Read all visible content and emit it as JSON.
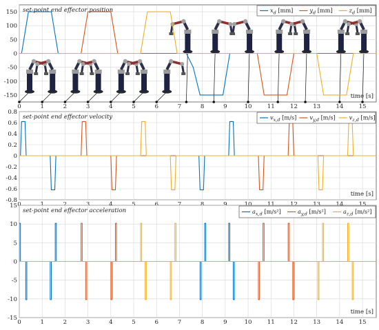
{
  "chart_data": [
    {
      "type": "line",
      "title": "set-point end effector position",
      "xlabel": "time [s]",
      "ylabel": "",
      "xlim": [
        0,
        15.6
      ],
      "ylim": [
        -175,
        175
      ],
      "xticks": [
        0,
        1,
        2,
        3,
        4,
        5,
        6,
        7,
        8,
        9,
        10,
        11,
        12,
        13,
        14,
        15
      ],
      "yticks": [
        -150,
        -100,
        -50,
        0,
        50,
        100,
        150
      ],
      "grid": true,
      "legend_position": "top-right",
      "legend": [
        "x_d [mm]",
        "y_d [mm]",
        "z_d [mm]"
      ],
      "robot_pose_times": [
        0,
        1,
        2,
        3,
        4,
        5,
        6,
        7.3,
        8.5,
        10,
        11.3,
        12.5,
        14,
        15
      ],
      "series": [
        {
          "name": "x_d [mm]",
          "color": "#0072BD",
          "x": [
            0,
            0.1,
            0.4,
            1.4,
            1.7,
            7.3,
            7.6,
            7.9,
            8.9,
            9.2,
            15.6
          ],
          "y": [
            0,
            0,
            150,
            150,
            0,
            0,
            -50,
            -150,
            -150,
            0,
            0
          ]
        },
        {
          "name": "y_d [mm]",
          "color": "#D95319",
          "x": [
            0,
            2.7,
            3.0,
            4.0,
            4.3,
            10.4,
            10.7,
            11.7,
            12.0,
            15.6
          ],
          "y": [
            0,
            0,
            150,
            150,
            0,
            0,
            -150,
            -150,
            0,
            0
          ]
        },
        {
          "name": "z_d [mm]",
          "color": "#EDB120",
          "x": [
            0,
            5.3,
            5.6,
            6.6,
            6.9,
            13.0,
            13.3,
            14.3,
            14.6,
            15.6
          ],
          "y": [
            0,
            0,
            150,
            150,
            0,
            0,
            -150,
            -150,
            0,
            0
          ]
        }
      ]
    },
    {
      "type": "line",
      "title": "set-point end effector velocity",
      "xlabel": "time [s]",
      "ylabel": "",
      "xlim": [
        0,
        15.6
      ],
      "ylim": [
        -0.8,
        0.8
      ],
      "xticks": [
        0,
        1,
        2,
        3,
        4,
        5,
        6,
        7,
        8,
        9,
        10,
        11,
        12,
        13,
        14,
        15
      ],
      "yticks": [
        -0.8,
        -0.6,
        -0.4,
        -0.2,
        0,
        0.2,
        0.4,
        0.6,
        0.8
      ],
      "grid": true,
      "legend_position": "top-right",
      "legend": [
        "v_x,d [m/s]",
        "v_y,d [m/s]",
        "v_z,d [m/s]"
      ],
      "series": [
        {
          "name": "v_x,d [m/s]",
          "color": "#0072BD",
          "x": [
            0,
            0.05,
            0.1,
            0.25,
            0.3,
            1.35,
            1.4,
            1.55,
            1.6,
            7.85,
            7.9,
            8.05,
            8.1,
            9.15,
            9.2,
            9.35,
            9.4,
            15.6
          ],
          "y": [
            0,
            0,
            0.62,
            0.62,
            0,
            0,
            -0.62,
            -0.62,
            0,
            0,
            -0.62,
            -0.62,
            0,
            0,
            0.62,
            0.62,
            0,
            0
          ]
        },
        {
          "name": "v_y,d [m/s]",
          "color": "#D95319",
          "x": [
            0,
            2.7,
            2.75,
            2.9,
            2.95,
            4.0,
            4.05,
            4.2,
            4.25,
            10.45,
            10.5,
            10.65,
            10.7,
            11.75,
            11.8,
            11.95,
            12.0,
            15.6
          ],
          "y": [
            0,
            0,
            0.62,
            0.62,
            0,
            0,
            -0.62,
            -0.62,
            0,
            0,
            -0.62,
            -0.62,
            0,
            0,
            0.62,
            0.62,
            0,
            0
          ]
        },
        {
          "name": "v_z,d [m/s]",
          "color": "#EDB120",
          "x": [
            0,
            5.3,
            5.35,
            5.5,
            5.55,
            6.6,
            6.65,
            6.8,
            6.85,
            13.05,
            13.1,
            13.25,
            13.3,
            14.35,
            14.4,
            14.55,
            14.6,
            15.6
          ],
          "y": [
            0,
            0,
            0.62,
            0.62,
            0,
            0,
            -0.62,
            -0.62,
            0,
            0,
            -0.62,
            -0.62,
            0,
            0,
            0.62,
            0.62,
            0,
            0
          ]
        }
      ]
    },
    {
      "type": "line",
      "title": "set-point end effector acceleration",
      "xlabel": "time [s]",
      "ylabel": "",
      "xlim": [
        0,
        15.6
      ],
      "ylim": [
        -15,
        15
      ],
      "xticks": [
        0,
        1,
        2,
        3,
        4,
        5,
        6,
        7,
        8,
        9,
        10,
        11,
        12,
        13,
        14,
        15
      ],
      "yticks": [
        -15,
        -10,
        -5,
        0,
        5,
        10,
        15
      ],
      "grid": true,
      "legend_position": "top-right",
      "legend": [
        "a_x,d [m/s²]",
        "a_y,d [m/s²]",
        "a_z,d [m/s²]"
      ],
      "pulse_width": 0.05,
      "series": [
        {
          "name": "a_x,d [m/s²]",
          "color": "#0072BD",
          "pulses": [
            [
              0.0,
              10.2
            ],
            [
              0.28,
              -10.2
            ],
            [
              1.35,
              -10.2
            ],
            [
              1.57,
              10.2
            ],
            [
              7.9,
              -10.2
            ],
            [
              8.1,
              10.2
            ],
            [
              9.15,
              10.2
            ],
            [
              9.35,
              -10.2
            ]
          ]
        },
        {
          "name": "a_y,d [m/s²]",
          "color": "#D95319",
          "pulses": [
            [
              2.7,
              10.2
            ],
            [
              2.9,
              -10.2
            ],
            [
              4.0,
              -10.2
            ],
            [
              4.2,
              10.2
            ],
            [
              10.45,
              -10.2
            ],
            [
              10.65,
              10.2
            ],
            [
              11.75,
              10.2
            ],
            [
              11.95,
              -10.2
            ]
          ]
        },
        {
          "name": "a_z,d [m/s²]",
          "color": "#EDB120",
          "pulses": [
            [
              5.3,
              10.2
            ],
            [
              5.5,
              -10.2
            ],
            [
              6.6,
              -10.2
            ],
            [
              6.8,
              10.2
            ],
            [
              13.05,
              -10.2
            ],
            [
              13.25,
              10.2
            ],
            [
              14.35,
              10.2
            ],
            [
              14.55,
              -10.2
            ]
          ]
        }
      ]
    }
  ]
}
